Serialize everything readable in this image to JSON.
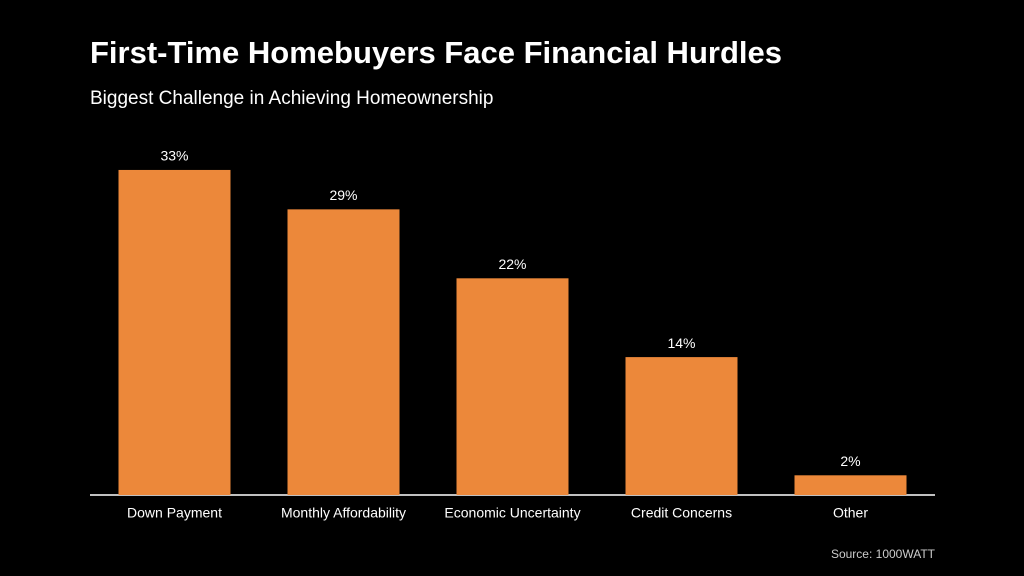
{
  "chart_data": {
    "type": "bar",
    "title": "First-Time Homebuyers Face Financial Hurdles",
    "subtitle": "Biggest Challenge in Achieving Homeownership",
    "categories": [
      "Down Payment",
      "Monthly Affordability",
      "Economic Uncertainty",
      "Credit Concerns",
      "Other"
    ],
    "values": [
      33,
      29,
      22,
      14,
      2
    ],
    "value_labels": [
      "33%",
      "29%",
      "22%",
      "14%",
      "2%"
    ],
    "color": "#ec883a",
    "source": "Source: 1000WATT"
  }
}
